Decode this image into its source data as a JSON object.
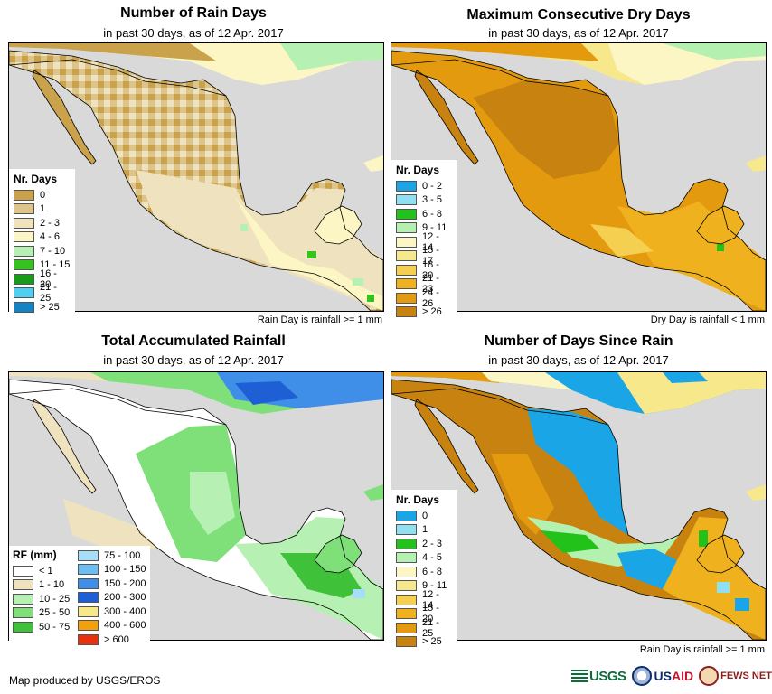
{
  "footer": {
    "credit": "Map produced by USGS/EROS"
  },
  "logos": {
    "usgs": "USGS",
    "usaid_us": "US",
    "usaid_aid": "AID",
    "fews": "FEWS NET"
  },
  "colors": {
    "water": "#d9d9d9",
    "border": "#000000"
  },
  "panels": {
    "rain_days": {
      "title": "Number of Rain Days",
      "subtitle": "in past 30 days, as of 12 Apr. 2017",
      "note": "Rain Day is rainfall >= 1 mm",
      "legend_title": "Nr. Days",
      "legend": [
        {
          "label": "0",
          "color": "#c9a24b"
        },
        {
          "label": "1",
          "color": "#dcc48a"
        },
        {
          "label": "2 - 3",
          "color": "#efe3bf"
        },
        {
          "label": "4 - 6",
          "color": "#fbf6c3"
        },
        {
          "label": "7 - 10",
          "color": "#b7f0b3"
        },
        {
          "label": "11 - 15",
          "color": "#36c21f"
        },
        {
          "label": "16 - 20",
          "color": "#1a9a1a"
        },
        {
          "label": "21 - 25",
          "color": "#4fd0f2"
        },
        {
          "label": "> 25",
          "color": "#1283c4"
        }
      ]
    },
    "dry_days": {
      "title": "Maximum Consecutive Dry Days",
      "subtitle": "in past 30 days, as of 12 Apr. 2017",
      "note": "Dry Day is rainfall < 1 mm",
      "legend_title": "Nr. Days",
      "legend": [
        {
          "label": "0 - 2",
          "color": "#1aa6e6"
        },
        {
          "label": "3 - 5",
          "color": "#8fe0f0"
        },
        {
          "label": "6 - 8",
          "color": "#22c21a"
        },
        {
          "label": "9 - 11",
          "color": "#b4f0b0"
        },
        {
          "label": "12 - 14",
          "color": "#fbf6c3"
        },
        {
          "label": "15 - 17",
          "color": "#f8e88c"
        },
        {
          "label": "18 - 20",
          "color": "#f5d050"
        },
        {
          "label": "21 - 23",
          "color": "#efb21e"
        },
        {
          "label": "24 - 26",
          "color": "#e39a0f"
        },
        {
          "label": "> 26",
          "color": "#c7820f"
        }
      ]
    },
    "total_rf": {
      "title": "Total Accumulated Rainfall",
      "subtitle": "in past 30 days, as of 12 Apr. 2017",
      "legend_title": "RF (mm)",
      "legend_col1": [
        {
          "label": "< 1",
          "color": "#ffffff"
        },
        {
          "label": "1 - 10",
          "color": "#efe3bf"
        },
        {
          "label": "10 - 25",
          "color": "#b7f0b3"
        },
        {
          "label": "25 - 50",
          "color": "#7fe07a"
        },
        {
          "label": "50 - 75",
          "color": "#3fc23a"
        }
      ],
      "legend_col2": [
        {
          "label": "75 - 100",
          "color": "#a6def7"
        },
        {
          "label": "100 - 150",
          "color": "#6cbdf2"
        },
        {
          "label": "150 - 200",
          "color": "#3f8fe8"
        },
        {
          "label": "200 - 300",
          "color": "#1f5fd6"
        },
        {
          "label": "300 - 400",
          "color": "#f8e88c"
        },
        {
          "label": "400 - 600",
          "color": "#f3a00f"
        },
        {
          "label": "> 600",
          "color": "#e8320f"
        }
      ]
    },
    "days_since": {
      "title": "Number of Days Since Rain",
      "subtitle": "in past 30 days, as of 12 Apr. 2017",
      "note": "Rain Day is rainfall >= 1 mm",
      "legend_title": "Nr. Days",
      "legend": [
        {
          "label": "0",
          "color": "#1aa6e6"
        },
        {
          "label": "1",
          "color": "#8fe0f0"
        },
        {
          "label": "2 - 3",
          "color": "#22c21a"
        },
        {
          "label": "4 - 5",
          "color": "#b4f0b0"
        },
        {
          "label": "6 - 8",
          "color": "#fbf6c3"
        },
        {
          "label": "9 - 11",
          "color": "#f8e88c"
        },
        {
          "label": "12 - 14",
          "color": "#f5d050"
        },
        {
          "label": "15 - 20",
          "color": "#efb21e"
        },
        {
          "label": "21 - 25",
          "color": "#e39a0f"
        },
        {
          "label": "> 25",
          "color": "#c7820f"
        }
      ]
    }
  }
}
